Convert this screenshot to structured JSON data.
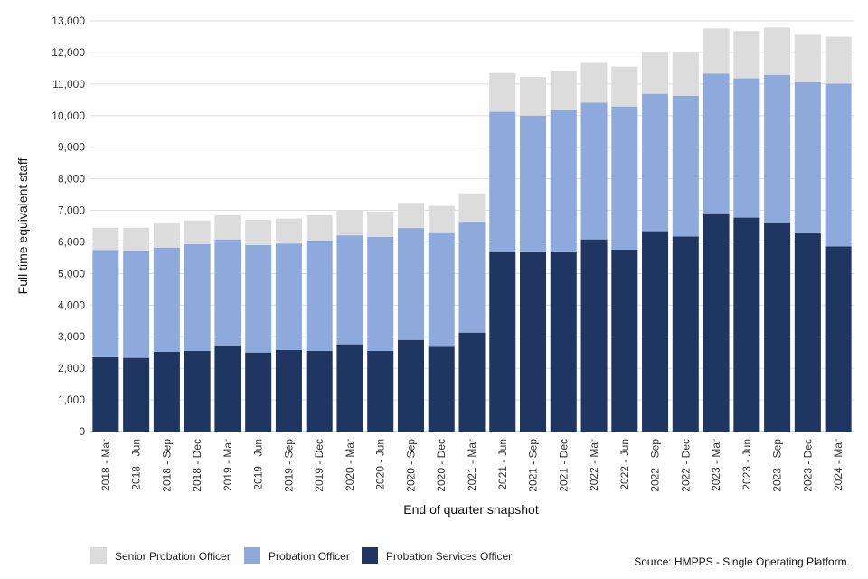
{
  "chart_data": {
    "type": "bar",
    "stacked": true,
    "title": "",
    "xlabel": "End of quarter snapshot",
    "ylabel": "Full time equivalent staff",
    "ylim": [
      0,
      13000
    ],
    "yticks": [
      0,
      1000,
      2000,
      3000,
      4000,
      5000,
      6000,
      7000,
      8000,
      9000,
      10000,
      11000,
      12000,
      13000
    ],
    "ytick_labels": [
      "0",
      "1,000",
      "2,000",
      "3,000",
      "4,000",
      "5,000",
      "6,000",
      "7,000",
      "8,000",
      "9,000",
      "10,000",
      "11,000",
      "12,000",
      "13,000"
    ],
    "grid": true,
    "categories": [
      "2018 - Mar",
      "2018 - Jun",
      "2018 - Sep",
      "2018 - Dec",
      "2019 - Mar",
      "2019 - Jun",
      "2019 - Sep",
      "2019 - Dec",
      "2020 - Mar",
      "2020 - Jun",
      "2020 - Sep",
      "2020 - Dec",
      "2021 - Mar",
      "2021 - Jun",
      "2021 - Sep",
      "2021 - Dec",
      "2022 - Mar",
      "2022 - Jun",
      "2022 - Sep",
      "2022 - Dec",
      "2023 - Mar",
      "2023 - Jun",
      "2023 - Sep",
      "2023 - Dec",
      "2024 - Mar"
    ],
    "series": [
      {
        "name": "Probation Services Officer",
        "color": "#1f3562",
        "values": [
          2350,
          2330,
          2520,
          2550,
          2700,
          2500,
          2580,
          2550,
          2760,
          2550,
          2900,
          2680,
          3130,
          5680,
          5700,
          5700,
          6080,
          5760,
          6340,
          6170,
          6910,
          6770,
          6590,
          6300,
          5860
        ]
      },
      {
        "name": "Probation Officer",
        "color": "#8eaadc",
        "values": [
          3400,
          3400,
          3300,
          3380,
          3380,
          3400,
          3370,
          3500,
          3450,
          3610,
          3540,
          3630,
          3510,
          4440,
          4300,
          4470,
          4330,
          4530,
          4350,
          4460,
          4420,
          4410,
          4700,
          4760,
          5150
        ]
      },
      {
        "name": "Senior Probation Officer",
        "color": "#dcdcdc",
        "values": [
          700,
          720,
          800,
          750,
          770,
          800,
          790,
          800,
          790,
          800,
          800,
          830,
          900,
          1230,
          1220,
          1230,
          1260,
          1260,
          1330,
          1370,
          1430,
          1500,
          1500,
          1500,
          1490
        ]
      }
    ],
    "legend": [
      {
        "label": "Senior Probation Officer",
        "color": "#dcdcdc"
      },
      {
        "label": "Probation Officer",
        "color": "#8eaadc"
      },
      {
        "label": "Probation Services Officer",
        "color": "#1f3562"
      }
    ],
    "legend_position": "bottom-left"
  },
  "source_note": "Source: HMPPS - Single Operating Platform."
}
